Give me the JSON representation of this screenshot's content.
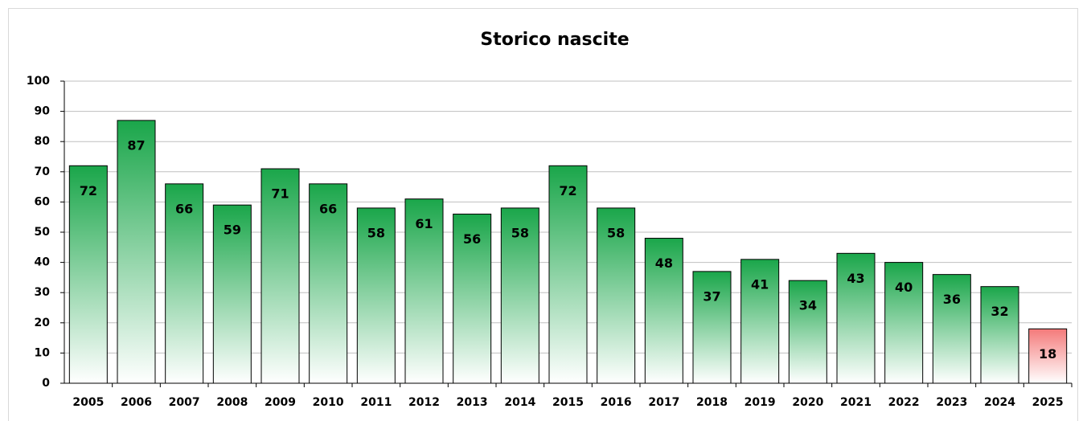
{
  "chart_data": {
    "type": "bar",
    "title": "Storico nascite",
    "categories": [
      "2005",
      "2006",
      "2007",
      "2008",
      "2009",
      "2010",
      "2011",
      "2012",
      "2013",
      "2014",
      "2015",
      "2016",
      "2017",
      "2018",
      "2019",
      "2020",
      "2021",
      "2022",
      "2023",
      "2024",
      "2025"
    ],
    "values": [
      72,
      87,
      66,
      59,
      71,
      66,
      58,
      61,
      56,
      58,
      72,
      58,
      48,
      37,
      41,
      34,
      43,
      40,
      36,
      32,
      18
    ],
    "colors": [
      "#1aa64a",
      "#1aa64a",
      "#1aa64a",
      "#1aa64a",
      "#1aa64a",
      "#1aa64a",
      "#1aa64a",
      "#1aa64a",
      "#1aa64a",
      "#1aa64a",
      "#1aa64a",
      "#1aa64a",
      "#1aa64a",
      "#1aa64a",
      "#1aa64a",
      "#1aa64a",
      "#1aa64a",
      "#1aa64a",
      "#1aa64a",
      "#1aa64a",
      "#f47a7a"
    ],
    "ylim": [
      0,
      100
    ],
    "yticks": [
      0,
      10,
      20,
      30,
      40,
      50,
      60,
      70,
      80,
      90,
      100
    ],
    "grid": true
  }
}
